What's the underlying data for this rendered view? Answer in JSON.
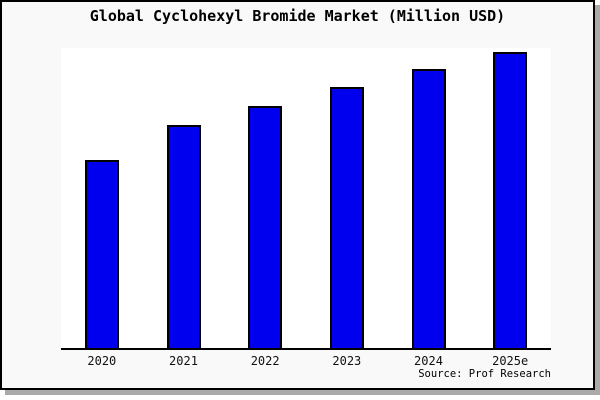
{
  "colors": {
    "bar_fill": "#0000EE",
    "bar_border": "#000000",
    "frame_background": "#F9F9F9",
    "frame_border": "#000000",
    "plot_background": "#FFFFFF",
    "axis_line": "#000000",
    "drop_shadow": "#AAAAAA"
  },
  "chart_data": {
    "type": "bar",
    "title": "Global Cyclohexyl Bromide Market (Million USD)",
    "categories": [
      "2020",
      "2021",
      "2022",
      "2023",
      "2024",
      "2025e"
    ],
    "values": [
      100,
      119,
      129,
      139,
      149,
      158
    ],
    "value_units": "relative index (y-axis unlabeled in chart; estimated with 2020 = 100)",
    "xlabel": "",
    "ylabel": "",
    "ylim": [
      0,
      160
    ],
    "y_axis_labels_visible": false,
    "gridlines": false,
    "legend": false,
    "source_note": "Source: Prof Research"
  }
}
